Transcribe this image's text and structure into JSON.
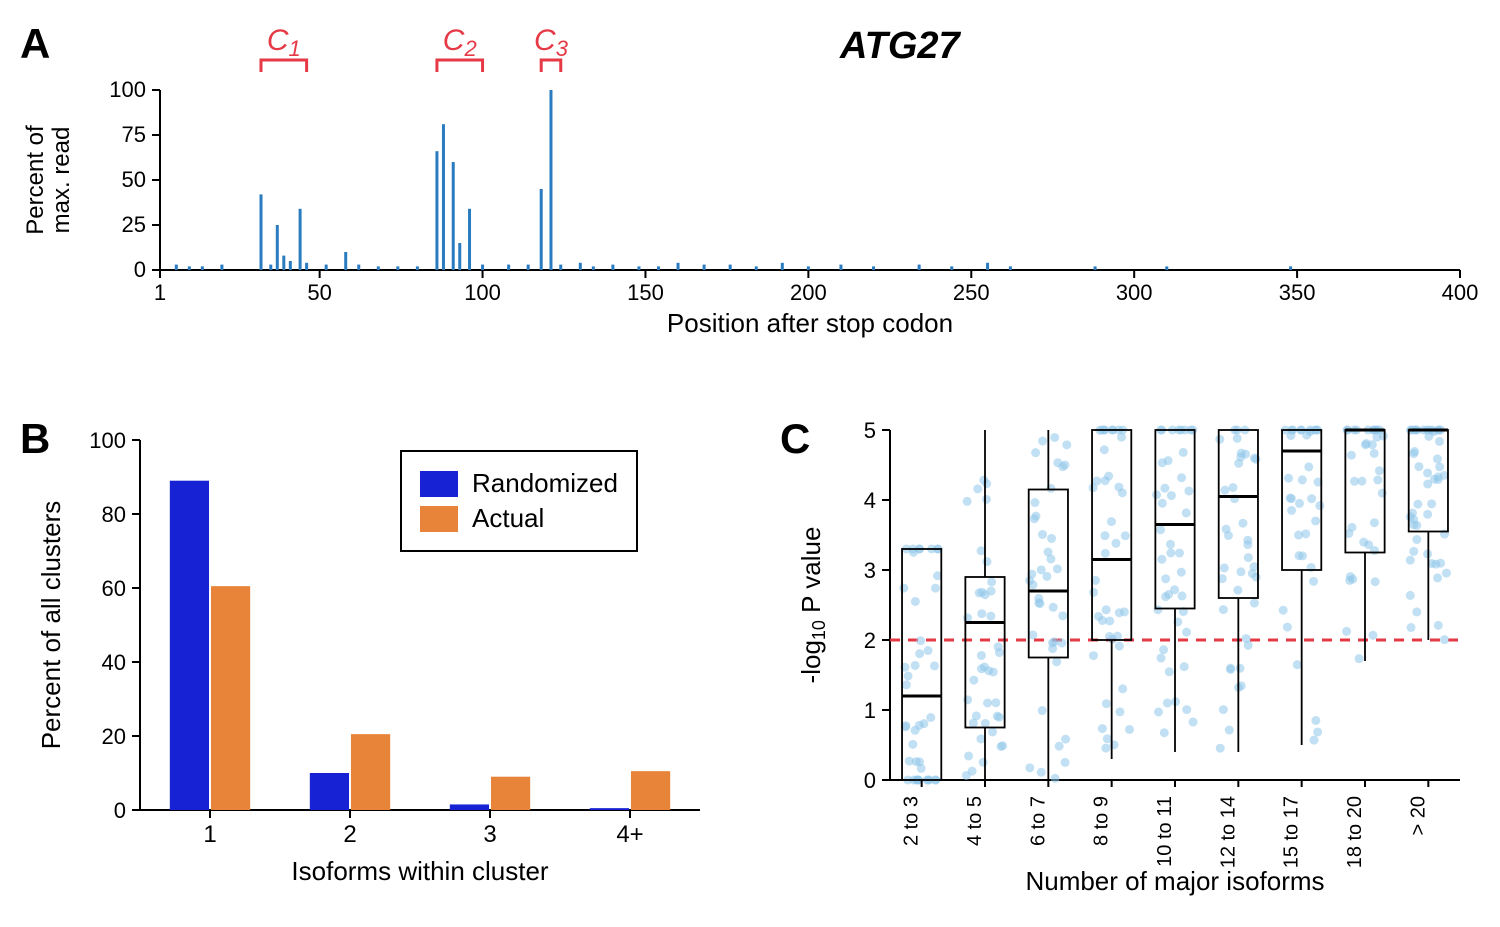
{
  "panelA": {
    "label": "A",
    "gene_title": "ATG27",
    "clusters": [
      {
        "label": "C",
        "sub": "1",
        "x_start": 32,
        "x_end": 46
      },
      {
        "label": "C",
        "sub": "2",
        "x_start": 86,
        "x_end": 100
      },
      {
        "label": "C",
        "sub": "3",
        "x_start": 118,
        "x_end": 124
      }
    ],
    "cluster_color": "#e63946",
    "bar_color": "#2a7bbf",
    "xlabel": "Position after stop codon",
    "ylabel_line1": "Percent of",
    "ylabel_line2": "max. read",
    "xlim": [
      1,
      400
    ],
    "ylim": [
      0,
      100
    ],
    "xticks": [
      1,
      50,
      100,
      150,
      200,
      250,
      300,
      350,
      400
    ],
    "yticks": [
      0,
      25,
      50,
      75,
      100
    ],
    "bars": [
      {
        "x": 6,
        "y": 3
      },
      {
        "x": 10,
        "y": 2
      },
      {
        "x": 14,
        "y": 2
      },
      {
        "x": 20,
        "y": 3
      },
      {
        "x": 32,
        "y": 42
      },
      {
        "x": 35,
        "y": 3
      },
      {
        "x": 37,
        "y": 25
      },
      {
        "x": 39,
        "y": 8
      },
      {
        "x": 41,
        "y": 5
      },
      {
        "x": 44,
        "y": 34
      },
      {
        "x": 46,
        "y": 4
      },
      {
        "x": 52,
        "y": 3
      },
      {
        "x": 58,
        "y": 10
      },
      {
        "x": 62,
        "y": 3
      },
      {
        "x": 68,
        "y": 2
      },
      {
        "x": 74,
        "y": 2
      },
      {
        "x": 80,
        "y": 2
      },
      {
        "x": 86,
        "y": 66
      },
      {
        "x": 88,
        "y": 81
      },
      {
        "x": 91,
        "y": 60
      },
      {
        "x": 93,
        "y": 15
      },
      {
        "x": 96,
        "y": 34
      },
      {
        "x": 100,
        "y": 3
      },
      {
        "x": 108,
        "y": 3
      },
      {
        "x": 114,
        "y": 3
      },
      {
        "x": 118,
        "y": 45
      },
      {
        "x": 121,
        "y": 100
      },
      {
        "x": 124,
        "y": 3
      },
      {
        "x": 130,
        "y": 4
      },
      {
        "x": 134,
        "y": 2
      },
      {
        "x": 140,
        "y": 3
      },
      {
        "x": 148,
        "y": 2
      },
      {
        "x": 154,
        "y": 2
      },
      {
        "x": 160,
        "y": 4
      },
      {
        "x": 168,
        "y": 3
      },
      {
        "x": 176,
        "y": 3
      },
      {
        "x": 184,
        "y": 2
      },
      {
        "x": 192,
        "y": 4
      },
      {
        "x": 200,
        "y": 2
      },
      {
        "x": 210,
        "y": 3
      },
      {
        "x": 220,
        "y": 2
      },
      {
        "x": 234,
        "y": 3
      },
      {
        "x": 244,
        "y": 2
      },
      {
        "x": 255,
        "y": 4
      },
      {
        "x": 262,
        "y": 2
      },
      {
        "x": 288,
        "y": 2
      },
      {
        "x": 310,
        "y": 2
      },
      {
        "x": 348,
        "y": 2
      }
    ]
  },
  "panelB": {
    "label": "B",
    "xlabel": "Isoforms within cluster",
    "ylabel": "Percent of all clusters",
    "categories": [
      "1",
      "2",
      "3",
      "4+"
    ],
    "series": [
      {
        "name": "Randomized",
        "color": "#1622d4",
        "values": [
          89,
          10,
          1.5,
          0.5
        ]
      },
      {
        "name": "Actual",
        "color": "#e8843a",
        "values": [
          60.5,
          20.5,
          9,
          10.5
        ]
      }
    ],
    "ylim": [
      0,
      100
    ],
    "yticks": [
      0,
      20,
      40,
      60,
      80,
      100
    ],
    "legend": {
      "items": [
        {
          "label": "Randomized",
          "color": "#1622d4"
        },
        {
          "label": "Actual",
          "color": "#e8843a"
        }
      ]
    }
  },
  "panelC": {
    "label": "C",
    "xlabel": "Number of major isoforms",
    "ylabel_prefix": "-log",
    "ylabel_sub": "10",
    "ylabel_suffix": " P value",
    "categories": [
      "2 to 3",
      "4 to 5",
      "6 to 7",
      "8 to 9",
      "10 to 11",
      "12 to 14",
      "15 to 17",
      "18 to 20",
      "> 20"
    ],
    "ylim": [
      0,
      5
    ],
    "yticks": [
      0,
      1,
      2,
      3,
      4,
      5
    ],
    "ref_line_y": 2,
    "ref_line_color": "#e63946",
    "point_color": "#8fc6ea",
    "point_opacity": 0.55,
    "box_stroke": "#000000",
    "boxes": [
      {
        "q1": 0.0,
        "med": 1.2,
        "q3": 3.3,
        "wlo": 0.0,
        "whi": 3.3
      },
      {
        "q1": 0.75,
        "med": 2.25,
        "q3": 2.9,
        "wlo": 0.0,
        "whi": 5.0
      },
      {
        "q1": 1.75,
        "med": 2.7,
        "q3": 4.15,
        "wlo": 0.0,
        "whi": 5.0
      },
      {
        "q1": 2.0,
        "med": 3.15,
        "q3": 5.0,
        "wlo": 0.3,
        "whi": 5.0
      },
      {
        "q1": 2.45,
        "med": 3.65,
        "q3": 5.0,
        "wlo": 0.4,
        "whi": 5.0
      },
      {
        "q1": 2.6,
        "med": 4.05,
        "q3": 5.0,
        "wlo": 0.4,
        "whi": 5.0
      },
      {
        "q1": 3.0,
        "med": 4.7,
        "q3": 5.0,
        "wlo": 0.5,
        "whi": 5.0
      },
      {
        "q1": 3.25,
        "med": 5.0,
        "q3": 5.0,
        "wlo": 1.7,
        "whi": 5.0
      },
      {
        "q1": 3.55,
        "med": 5.0,
        "q3": 5.0,
        "wlo": 2.0,
        "whi": 5.0
      }
    ],
    "jitter_seed": 7
  }
}
